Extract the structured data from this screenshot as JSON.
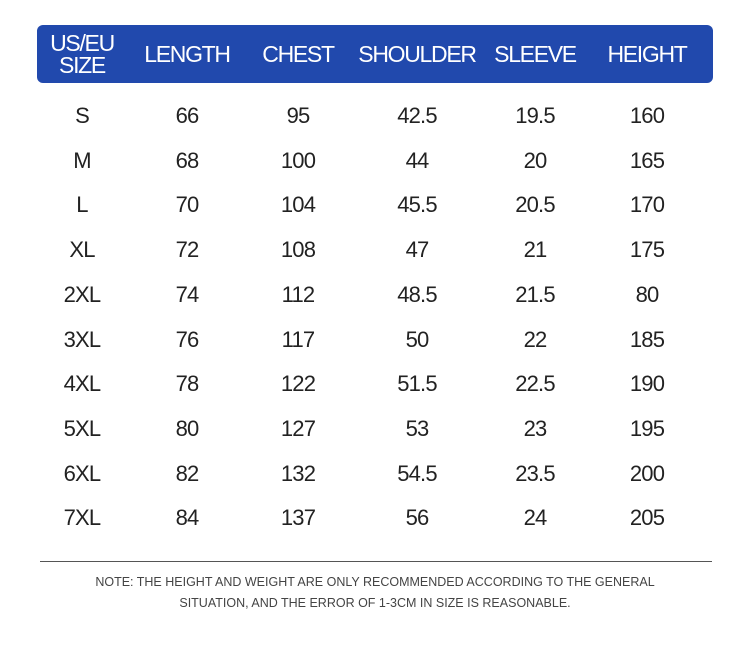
{
  "header": {
    "columns": [
      "US/EU SIZE",
      "LENGTH",
      "CHEST",
      "SHOULDER",
      "SLEEVE",
      "HEIGHT"
    ]
  },
  "accent_color": "#2149ad",
  "rows": [
    [
      "S",
      "66",
      "95",
      "42.5",
      "19.5",
      "160"
    ],
    [
      "M",
      "68",
      "100",
      "44",
      "20",
      "165"
    ],
    [
      "L",
      "70",
      "104",
      "45.5",
      "20.5",
      "170"
    ],
    [
      "XL",
      "72",
      "108",
      "47",
      "21",
      "175"
    ],
    [
      "2XL",
      "74",
      "112",
      "48.5",
      "21.5",
      "80"
    ],
    [
      "3XL",
      "76",
      "117",
      "50",
      "22",
      "185"
    ],
    [
      "4XL",
      "78",
      "122",
      "51.5",
      "22.5",
      "190"
    ],
    [
      "5XL",
      "80",
      "127",
      "53",
      "23",
      "195"
    ],
    [
      "6XL",
      "82",
      "132",
      "54.5",
      "23.5",
      "200"
    ],
    [
      "7XL",
      "84",
      "137",
      "56",
      "24",
      "205"
    ]
  ],
  "note": {
    "line1": "NOTE: THE HEIGHT AND WEIGHT ARE ONLY RECOMMENDED ACCORDING TO THE GENERAL",
    "line2": "SITUATION, AND THE ERROR OF 1-3CM IN SIZE IS REASONABLE."
  }
}
